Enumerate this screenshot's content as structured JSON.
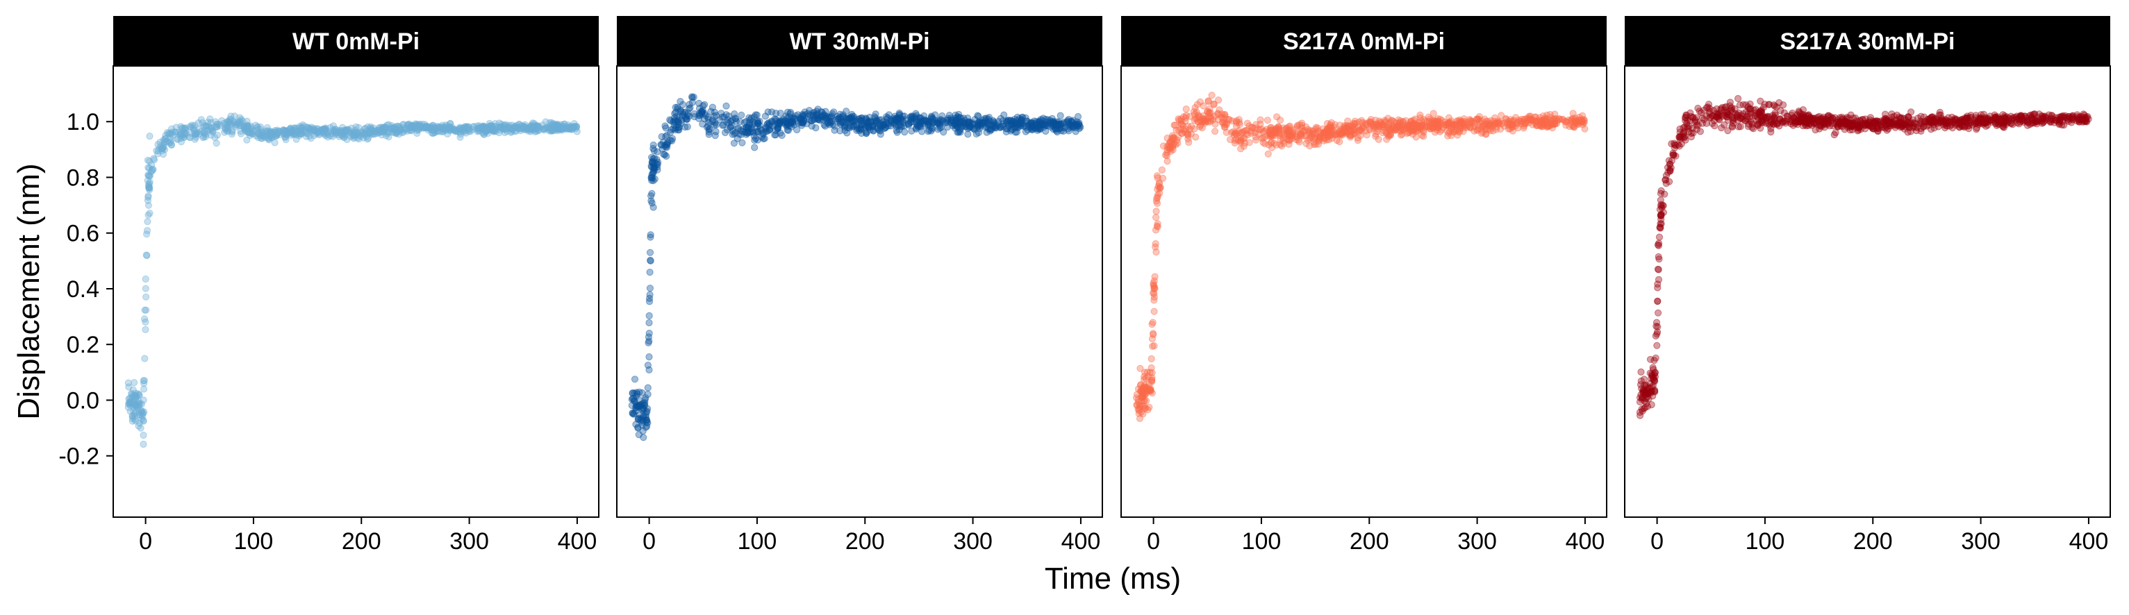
{
  "chart_data": {
    "type": "scatter",
    "layout": "facets",
    "xlabel": "Time (ms)",
    "ylabel": "Displacement (nm)",
    "xlim": [
      -30,
      420
    ],
    "ylim": [
      -0.42,
      1.2
    ],
    "x_ticks": [
      0,
      100,
      200,
      300,
      400
    ],
    "x_tick_labels": [
      "0",
      "100",
      "200",
      "300",
      "400"
    ],
    "y_ticks": [
      -0.2,
      0.0,
      0.2,
      0.4,
      0.6,
      0.8,
      1.0
    ],
    "y_tick_labels": [
      "-0.2",
      "0.0",
      "0.2",
      "0.4",
      "0.6",
      "0.8",
      "1.0"
    ],
    "grid": false,
    "legend": "none",
    "panels": [
      {
        "title": "WT 0mM-Pi",
        "color": "#6BAED6",
        "noise": 0.018,
        "series": [
          {
            "x": -16,
            "y": 0.0
          },
          {
            "x": -2,
            "y": -0.05
          },
          {
            "x": 0,
            "y": 0.32
          },
          {
            "x": 2,
            "y": 0.75
          },
          {
            "x": 5,
            "y": 0.82
          },
          {
            "x": 10,
            "y": 0.88
          },
          {
            "x": 20,
            "y": 0.94
          },
          {
            "x": 40,
            "y": 0.97
          },
          {
            "x": 60,
            "y": 0.97
          },
          {
            "x": 85,
            "y": 0.99
          },
          {
            "x": 110,
            "y": 0.95
          },
          {
            "x": 150,
            "y": 0.97
          },
          {
            "x": 200,
            "y": 0.96
          },
          {
            "x": 250,
            "y": 0.98
          },
          {
            "x": 300,
            "y": 0.97
          },
          {
            "x": 350,
            "y": 0.98
          },
          {
            "x": 400,
            "y": 0.98
          }
        ]
      },
      {
        "title": "WT 30mM-Pi",
        "color": "#08519C",
        "noise": 0.03,
        "series": [
          {
            "x": -16,
            "y": 0.0
          },
          {
            "x": -2,
            "y": -0.07
          },
          {
            "x": 0,
            "y": 0.2
          },
          {
            "x": 2,
            "y": 0.8
          },
          {
            "x": 10,
            "y": 0.9
          },
          {
            "x": 25,
            "y": 1.0
          },
          {
            "x": 40,
            "y": 1.04
          },
          {
            "x": 70,
            "y": 0.99
          },
          {
            "x": 100,
            "y": 0.98
          },
          {
            "x": 150,
            "y": 1.02
          },
          {
            "x": 200,
            "y": 0.99
          },
          {
            "x": 250,
            "y": 1.0
          },
          {
            "x": 300,
            "y": 0.99
          },
          {
            "x": 350,
            "y": 0.99
          },
          {
            "x": 400,
            "y": 0.99
          }
        ]
      },
      {
        "title": "S217A 0mM-Pi",
        "color": "#FB6A4A",
        "noise": 0.03,
        "series": [
          {
            "x": -16,
            "y": 0.0
          },
          {
            "x": -2,
            "y": 0.05
          },
          {
            "x": 0,
            "y": 0.3
          },
          {
            "x": 3,
            "y": 0.7
          },
          {
            "x": 10,
            "y": 0.88
          },
          {
            "x": 25,
            "y": 0.98
          },
          {
            "x": 55,
            "y": 1.04
          },
          {
            "x": 80,
            "y": 0.95
          },
          {
            "x": 100,
            "y": 0.97
          },
          {
            "x": 150,
            "y": 0.95
          },
          {
            "x": 200,
            "y": 0.98
          },
          {
            "x": 250,
            "y": 0.98
          },
          {
            "x": 300,
            "y": 0.99
          },
          {
            "x": 350,
            "y": 1.0
          },
          {
            "x": 400,
            "y": 1.0
          }
        ]
      },
      {
        "title": "S217A 30mM-Pi",
        "color": "#99000D",
        "noise": 0.024,
        "series": [
          {
            "x": -16,
            "y": 0.0
          },
          {
            "x": -2,
            "y": 0.08
          },
          {
            "x": 0,
            "y": 0.3
          },
          {
            "x": 3,
            "y": 0.65
          },
          {
            "x": 10,
            "y": 0.82
          },
          {
            "x": 25,
            "y": 0.98
          },
          {
            "x": 50,
            "y": 1.03
          },
          {
            "x": 100,
            "y": 1.02
          },
          {
            "x": 150,
            "y": 1.0
          },
          {
            "x": 200,
            "y": 0.99
          },
          {
            "x": 250,
            "y": 1.0
          },
          {
            "x": 300,
            "y": 1.0
          },
          {
            "x": 350,
            "y": 1.01
          },
          {
            "x": 400,
            "y": 1.01
          }
        ]
      }
    ]
  }
}
